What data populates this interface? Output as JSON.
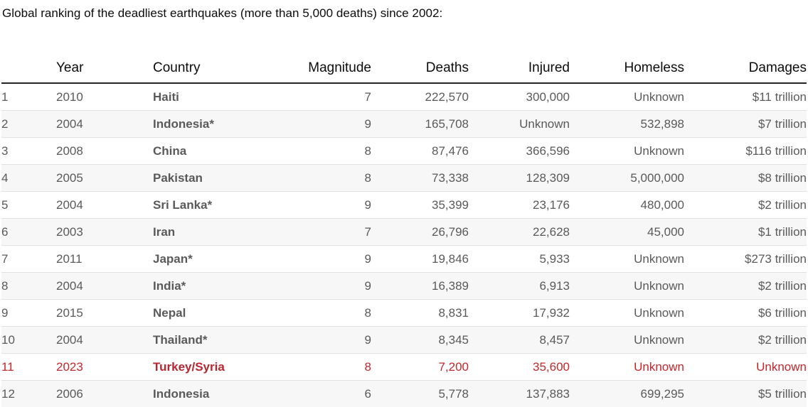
{
  "caption": "Global ranking of the deadliest earthquakes (more than 5,000 deaths) since 2002:",
  "colors": {
    "highlight": "#c4272c",
    "header_rule": "#262626",
    "stripe": "#f7f7f7"
  },
  "table": {
    "headers": {
      "rank": "",
      "year": "Year",
      "country": "Country",
      "magnitude": "Magnitude",
      "deaths": "Deaths",
      "injured": "Injured",
      "homeless": "Homeless",
      "damages": "Damages"
    },
    "rows": [
      {
        "rank": "1",
        "year": "2010",
        "country": "Haiti",
        "magnitude": "7",
        "deaths": "222,570",
        "injured": "300,000",
        "homeless": "Unknown",
        "damages": "$11 trillion"
      },
      {
        "rank": "2",
        "year": "2004",
        "country": "Indonesia*",
        "magnitude": "9",
        "deaths": "165,708",
        "injured": "Unknown",
        "homeless": "532,898",
        "damages": "$7 trillion"
      },
      {
        "rank": "3",
        "year": "2008",
        "country": "China",
        "magnitude": "8",
        "deaths": "87,476",
        "injured": "366,596",
        "homeless": "Unknown",
        "damages": "$116 trillion"
      },
      {
        "rank": "4",
        "year": "2005",
        "country": "Pakistan",
        "magnitude": "8",
        "deaths": "73,338",
        "injured": "128,309",
        "homeless": "5,000,000",
        "damages": "$8 trillion"
      },
      {
        "rank": "5",
        "year": "2004",
        "country": "Sri Lanka*",
        "magnitude": "9",
        "deaths": "35,399",
        "injured": "23,176",
        "homeless": "480,000",
        "damages": "$2 trillion"
      },
      {
        "rank": "6",
        "year": "2003",
        "country": "Iran",
        "magnitude": "7",
        "deaths": "26,796",
        "injured": "22,628",
        "homeless": "45,000",
        "damages": "$1 trillion"
      },
      {
        "rank": "7",
        "year": "2011",
        "country": "Japan*",
        "magnitude": "9",
        "deaths": "19,846",
        "injured": "5,933",
        "homeless": "Unknown",
        "damages": "$273 trillion"
      },
      {
        "rank": "8",
        "year": "2004",
        "country": "India*",
        "magnitude": "9",
        "deaths": "16,389",
        "injured": "6,913",
        "homeless": "Unknown",
        "damages": "$2 trillion"
      },
      {
        "rank": "9",
        "year": "2015",
        "country": "Nepal",
        "magnitude": "8",
        "deaths": "8,831",
        "injured": "17,932",
        "homeless": "Unknown",
        "damages": "$6 trillion"
      },
      {
        "rank": "10",
        "year": "2004",
        "country": "Thailand*",
        "magnitude": "9",
        "deaths": "8,345",
        "injured": "8,457",
        "homeless": "Unknown",
        "damages": "$2 trillion"
      },
      {
        "rank": "11",
        "year": "2023",
        "country": "Turkey/Syria",
        "magnitude": "8",
        "deaths": "7,200",
        "injured": "35,600",
        "homeless": "Unknown",
        "damages": "Unknown",
        "highlight": true
      },
      {
        "rank": "12",
        "year": "2006",
        "country": "Indonesia",
        "magnitude": "6",
        "deaths": "5,778",
        "injured": "137,883",
        "homeless": "699,295",
        "damages": "$5 trillion"
      }
    ]
  }
}
